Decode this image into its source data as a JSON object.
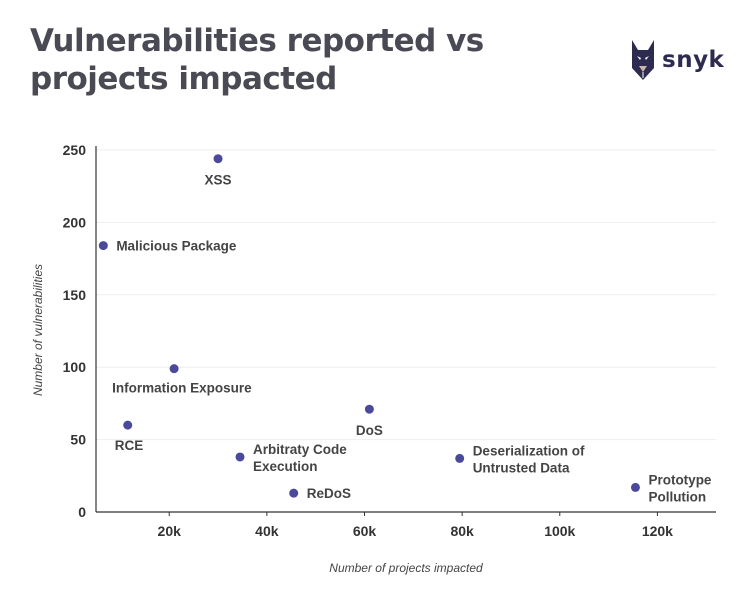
{
  "title": "Vulnerabilities reported vs projects impacted",
  "logo": {
    "icon": "snyk-dog-icon",
    "text": "snyk"
  },
  "colors": {
    "point": "#4b4a9a",
    "title": "#4a4a55",
    "axis": "#333333",
    "grid": "#eeeeee"
  },
  "chart_data": {
    "type": "scatter",
    "title": "Vulnerabilities reported vs projects impacted",
    "xlabel": "Number of projects impacted",
    "ylabel": "Number of vulnerabilities",
    "xlim": [
      5000,
      132000
    ],
    "ylim": [
      0,
      250
    ],
    "xticks": [
      {
        "v": 20000,
        "label": "20k"
      },
      {
        "v": 40000,
        "label": "40k"
      },
      {
        "v": 60000,
        "label": "60k"
      },
      {
        "v": 80000,
        "label": "80k"
      },
      {
        "v": 100000,
        "label": "100k"
      },
      {
        "v": 120000,
        "label": "120k"
      }
    ],
    "yticks": [
      {
        "v": 0,
        "label": "0"
      },
      {
        "v": 50,
        "label": "50"
      },
      {
        "v": 100,
        "label": "100"
      },
      {
        "v": 150,
        "label": "150"
      },
      {
        "v": 200,
        "label": "200"
      },
      {
        "v": 250,
        "label": "250"
      }
    ],
    "grid": true,
    "points": [
      {
        "name": "XSS",
        "label": [
          "XSS"
        ],
        "x": 30000,
        "y": 244,
        "pos": "below"
      },
      {
        "name": "Malicious Package",
        "label": [
          "Malicious Package"
        ],
        "x": 6500,
        "y": 184,
        "pos": "right"
      },
      {
        "name": "Information Exposure",
        "label": [
          "Information Exposure"
        ],
        "x": 21000,
        "y": 99,
        "pos": "below-left"
      },
      {
        "name": "RCE",
        "label": [
          "RCE"
        ],
        "x": 11500,
        "y": 60,
        "pos": "below-left"
      },
      {
        "name": "DoS",
        "label": [
          "DoS"
        ],
        "x": 61000,
        "y": 71,
        "pos": "below"
      },
      {
        "name": "Arbitraty Code Execution",
        "label": [
          "Arbitraty Code",
          "Execution"
        ],
        "x": 34500,
        "y": 38,
        "pos": "right-multi"
      },
      {
        "name": "ReDoS",
        "label": [
          "ReDoS"
        ],
        "x": 45500,
        "y": 13,
        "pos": "right"
      },
      {
        "name": "Deserialization of Untrusted Data",
        "label": [
          "Deserialization of",
          "Untrusted Data"
        ],
        "x": 79500,
        "y": 37,
        "pos": "right-multi"
      },
      {
        "name": "Prototype Pollution",
        "label": [
          "Prototype",
          "Pollution"
        ],
        "x": 115500,
        "y": 17,
        "pos": "right-multi"
      }
    ]
  }
}
